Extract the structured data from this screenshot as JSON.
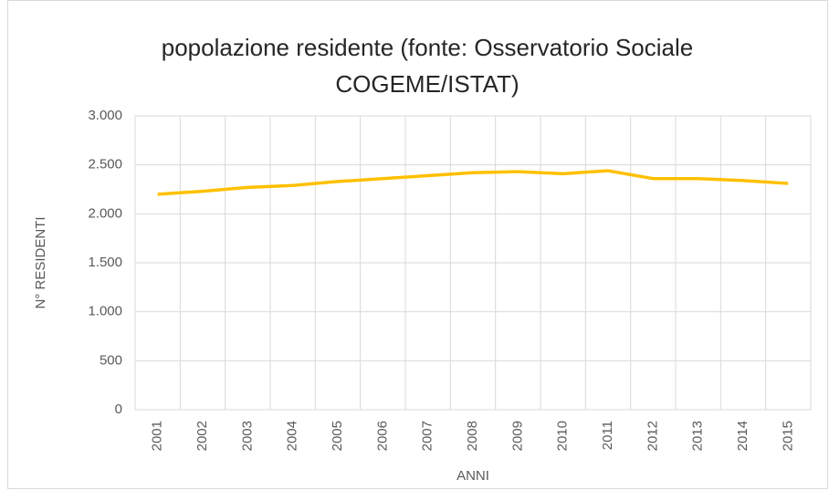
{
  "chart_data": {
    "type": "line",
    "title": "popolazione residente (fonte: Osservatorio Sociale COGEME/ISTAT)",
    "x_label": "ANNI",
    "y_label": "N° RESIDENTI",
    "categories": [
      "2001",
      "2002",
      "2003",
      "2004",
      "2005",
      "2006",
      "2007",
      "2008",
      "2009",
      "2010",
      "2011",
      "2012",
      "2013",
      "2014",
      "2015"
    ],
    "series": [
      {
        "name": "popolazione residente",
        "color": "#FFC000",
        "values": [
          2200,
          2230,
          2270,
          2290,
          2330,
          2360,
          2390,
          2420,
          2430,
          2410,
          2440,
          2360,
          2360,
          2340,
          2310
        ]
      }
    ],
    "ylim": [
      0,
      3000
    ],
    "yticks": [
      0,
      500,
      {
        "value": 1000,
        "label": "1.000"
      },
      {
        "value": 1500,
        "label": "1.500"
      },
      {
        "value": 2000,
        "label": "2.000"
      },
      {
        "value": 2500,
        "label": "2.500"
      },
      {
        "value": 3000,
        "label": "3.000"
      }
    ],
    "grid": true
  }
}
